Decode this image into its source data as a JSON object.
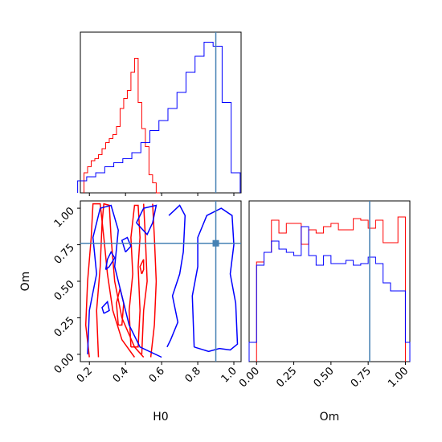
{
  "chart_data": [
    {
      "type": "histogram",
      "panel": "H0 marginal",
      "x_range": [
        0.15,
        1.04
      ],
      "truth_x": 0.9,
      "series": [
        {
          "color": "#ff0000",
          "x": [
            0.18,
            0.2,
            0.22,
            0.24,
            0.26,
            0.28,
            0.3,
            0.32,
            0.34,
            0.36,
            0.38,
            0.4,
            0.42,
            0.44,
            0.46,
            0.48,
            0.5,
            0.52,
            0.54,
            0.56,
            0.58
          ],
          "values": [
            0.1,
            0.13,
            0.16,
            0.17,
            0.19,
            0.22,
            0.25,
            0.27,
            0.29,
            0.33,
            0.42,
            0.47,
            0.51,
            0.6,
            0.67,
            0.45,
            0.32,
            0.23,
            0.09,
            0.05,
            0.0
          ]
        },
        {
          "color": "#0000ff",
          "x": [
            0.16,
            0.21,
            0.26,
            0.31,
            0.36,
            0.41,
            0.46,
            0.51,
            0.56,
            0.61,
            0.66,
            0.71,
            0.76,
            0.81,
            0.86,
            0.91,
            0.96,
            1.01
          ],
          "values": [
            0.06,
            0.08,
            0.1,
            0.13,
            0.15,
            0.17,
            0.2,
            0.25,
            0.31,
            0.36,
            0.42,
            0.5,
            0.6,
            0.68,
            0.75,
            0.73,
            0.45,
            0.1
          ]
        }
      ]
    },
    {
      "type": "contour",
      "panel": "H0 vs Om joint",
      "xlabel": "H0",
      "ylabel": "Om",
      "x_ticks": [
        "0.2",
        "0.4",
        "0.6",
        "0.8",
        "1.0"
      ],
      "y_ticks": [
        "0.00",
        "0.25",
        "0.50",
        "0.75",
        "1.00"
      ],
      "x_range": [
        0.15,
        1.04
      ],
      "y_range": [
        -0.05,
        1.05
      ],
      "truth": {
        "x": 0.9,
        "y": 0.76
      },
      "series": [
        {
          "color": "#ff0000",
          "contours": [
            [
              [
                0.2,
                -0.02
              ],
              [
                0.18,
                0.2
              ],
              [
                0.19,
                0.5
              ],
              [
                0.21,
                0.8
              ],
              [
                0.22,
                1.03
              ],
              [
                0.26,
                1.03
              ],
              [
                0.28,
                0.8
              ],
              [
                0.3,
                0.55
              ],
              [
                0.33,
                0.3
              ],
              [
                0.38,
                0.1
              ],
              [
                0.45,
                -0.02
              ]
            ],
            [
              [
                0.54,
                -0.02
              ],
              [
                0.56,
                0.2
              ],
              [
                0.57,
                0.5
              ],
              [
                0.56,
                0.8
              ],
              [
                0.55,
                1.03
              ]
            ],
            [
              [
                0.25,
                -0.02
              ],
              [
                0.24,
                0.3
              ],
              [
                0.26,
                0.6
              ],
              [
                0.27,
                0.9
              ],
              [
                0.28,
                1.03
              ],
              [
                0.31,
                1.02
              ],
              [
                0.32,
                0.8
              ],
              [
                0.34,
                0.5
              ],
              [
                0.38,
                0.25
              ],
              [
                0.45,
                0.05
              ],
              [
                0.5,
                -0.02
              ]
            ],
            [
              [
                0.49,
                0.0
              ],
              [
                0.5,
                0.3
              ],
              [
                0.52,
                0.5
              ],
              [
                0.51,
                0.8
              ],
              [
                0.5,
                1.03
              ]
            ],
            [
              [
                0.43,
                0.05
              ],
              [
                0.42,
                0.3
              ],
              [
                0.44,
                0.55
              ],
              [
                0.43,
                0.8
              ],
              [
                0.45,
                1.02
              ],
              [
                0.47,
                1.02
              ],
              [
                0.48,
                0.8
              ],
              [
                0.47,
                0.6
              ],
              [
                0.48,
                0.3
              ],
              [
                0.47,
                0.05
              ],
              [
                0.43,
                0.05
              ]
            ],
            [
              [
                0.36,
                0.2
              ],
              [
                0.35,
                0.35
              ],
              [
                0.37,
                0.45
              ],
              [
                0.39,
                0.35
              ],
              [
                0.38,
                0.2
              ],
              [
                0.36,
                0.2
              ]
            ],
            [
              [
                0.49,
                0.55
              ],
              [
                0.48,
                0.6
              ],
              [
                0.5,
                0.65
              ],
              [
                0.5,
                0.58
              ],
              [
                0.49,
                0.55
              ]
            ]
          ]
        },
        {
          "color": "#0000ff",
          "contours": [
            [
              [
                0.19,
                0.0
              ],
              [
                0.2,
                0.3
              ],
              [
                0.24,
                0.55
              ],
              [
                0.22,
                0.8
              ],
              [
                0.26,
                1.0
              ],
              [
                0.32,
                1.02
              ],
              [
                0.36,
                0.85
              ],
              [
                0.34,
                0.6
              ],
              [
                0.38,
                0.4
              ],
              [
                0.42,
                0.2
              ],
              [
                0.48,
                0.05
              ],
              [
                0.6,
                -0.02
              ]
            ],
            [
              [
                0.46,
                0.9
              ],
              [
                0.5,
                1.0
              ],
              [
                0.57,
                1.02
              ],
              [
                0.55,
                0.9
              ],
              [
                0.52,
                0.82
              ],
              [
                0.46,
                0.9
              ]
            ],
            [
              [
                0.78,
                0.05
              ],
              [
                0.86,
                0.02
              ],
              [
                0.92,
                0.04
              ],
              [
                0.98,
                0.03
              ],
              [
                1.02,
                0.07
              ],
              [
                1.01,
                0.35
              ],
              [
                0.98,
                0.55
              ],
              [
                1.0,
                0.75
              ],
              [
                0.99,
                0.95
              ],
              [
                0.93,
                1.0
              ],
              [
                0.85,
                0.95
              ],
              [
                0.8,
                0.8
              ],
              [
                0.8,
                0.6
              ],
              [
                0.77,
                0.4
              ],
              [
                0.78,
                0.05
              ]
            ],
            [
              [
                0.64,
                0.95
              ],
              [
                0.7,
                1.02
              ],
              [
                0.73,
                0.95
              ],
              [
                0.72,
                0.7
              ],
              [
                0.7,
                0.55
              ],
              [
                0.66,
                0.4
              ],
              [
                0.69,
                0.22
              ],
              [
                0.65,
                0.1
              ],
              [
                0.63,
                0.05
              ]
            ],
            [
              [
                0.29,
                0.58
              ],
              [
                0.3,
                0.65
              ],
              [
                0.32,
                0.7
              ],
              [
                0.34,
                0.66
              ],
              [
                0.31,
                0.6
              ],
              [
                0.29,
                0.58
              ]
            ],
            [
              [
                0.28,
                0.28
              ],
              [
                0.27,
                0.32
              ],
              [
                0.3,
                0.36
              ],
              [
                0.31,
                0.3
              ],
              [
                0.28,
                0.28
              ]
            ],
            [
              [
                0.4,
                0.7
              ],
              [
                0.38,
                0.78
              ],
              [
                0.41,
                0.8
              ],
              [
                0.43,
                0.74
              ],
              [
                0.4,
                0.7
              ]
            ]
          ]
        }
      ]
    },
    {
      "type": "histogram",
      "panel": "Om marginal",
      "xlabel": "Om",
      "x_ticks": [
        "0.00",
        "0.25",
        "0.50",
        "0.75",
        "1.00"
      ],
      "x_range": [
        -0.05,
        1.03
      ],
      "truth_x": 0.76,
      "series": [
        {
          "color": "#ff0000",
          "edges": [
            0.0,
            0.05,
            0.1,
            0.15,
            0.2,
            0.25,
            0.3,
            0.35,
            0.4,
            0.45,
            0.5,
            0.55,
            0.6,
            0.65,
            0.7,
            0.75,
            0.8,
            0.85,
            0.9,
            0.95,
            1.0
          ],
          "values": [
            0.62,
            0.68,
            0.88,
            0.8,
            0.86,
            0.86,
            0.73,
            0.82,
            0.8,
            0.84,
            0.86,
            0.82,
            0.82,
            0.89,
            0.88,
            0.83,
            0.88,
            0.74,
            0.74,
            0.9
          ]
        },
        {
          "color": "#0000ff",
          "edges": [
            -0.05,
            0.0,
            0.05,
            0.1,
            0.15,
            0.2,
            0.25,
            0.3,
            0.35,
            0.4,
            0.45,
            0.5,
            0.55,
            0.6,
            0.65,
            0.7,
            0.75,
            0.8,
            0.85,
            0.9,
            0.95,
            1.0,
            1.03
          ],
          "values": [
            0.12,
            0.6,
            0.68,
            0.75,
            0.7,
            0.68,
            0.66,
            0.84,
            0.66,
            0.6,
            0.66,
            0.61,
            0.61,
            0.63,
            0.6,
            0.61,
            0.65,
            0.61,
            0.49,
            0.44,
            0.44,
            0.12
          ]
        }
      ]
    }
  ]
}
